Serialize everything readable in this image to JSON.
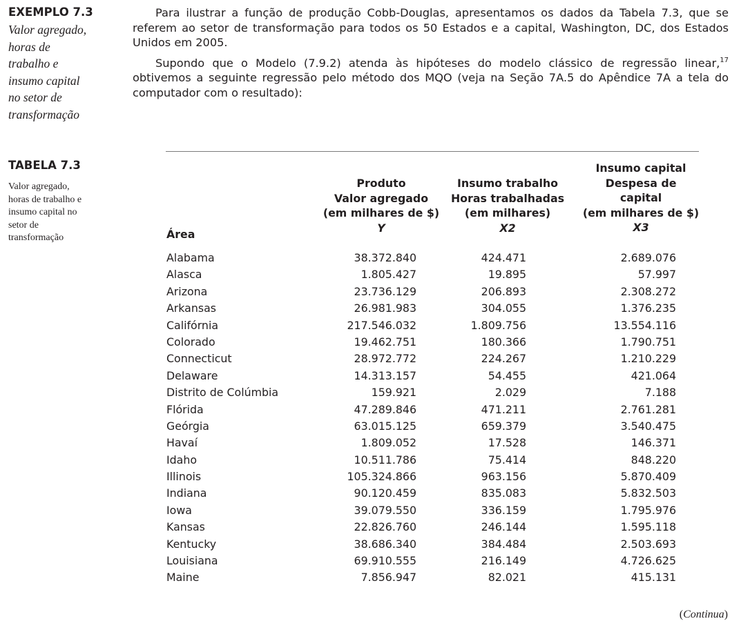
{
  "sidebar": {
    "example_heading": "EXEMPLO 7.3",
    "example_caption_lines": [
      "Valor agregado,",
      "horas de",
      "trabalho e",
      "insumo capital",
      "no setor de",
      "transformação"
    ],
    "table_heading": "TABELA 7.3",
    "table_caption_lines": [
      "Valor agregado,",
      "horas de trabalho e",
      "insumo capital no",
      "setor de",
      "transformação"
    ]
  },
  "body": {
    "para1": "Para ilustrar a função de produção Cobb-Douglas, apresentamos os dados da Tabela 7.3, que se referem ao setor de transformação para todos os 50 Estados e a capital, Washington, DC, dos Estados Unidos em 2005.",
    "para2_a": "Supondo que o Modelo (7.9.2) atenda às hipóteses do modelo clássico de regressão linear,",
    "para2_sup": "17",
    "para2_b": " obtivemos a seguinte regressão pelo método dos MQO (veja na Seção 7A.5 do Apêndice 7A a tela do computador com o resultado):"
  },
  "table": {
    "headers": {
      "area": "Área",
      "y": [
        "Produto",
        "Valor agregado",
        "(em milhares de $)",
        "Y"
      ],
      "x2": [
        "Insumo trabalho",
        "Horas trabalhadas",
        "(em milhares)",
        "X2"
      ],
      "x3": [
        "Insumo capital",
        "Despesa de",
        "capital",
        "(em milhares de $)",
        "X3"
      ]
    },
    "rows": [
      [
        "Alabama",
        "38.372.840",
        "424.471",
        "2.689.076"
      ],
      [
        "Alasca",
        "1.805.427",
        "19.895",
        "57.997"
      ],
      [
        "Arizona",
        "23.736.129",
        "206.893",
        "2.308.272"
      ],
      [
        "Arkansas",
        "26.981.983",
        "304.055",
        "1.376.235"
      ],
      [
        "Califórnia",
        "217.546.032",
        "1.809.756",
        "13.554.116"
      ],
      [
        "Colorado",
        "19.462.751",
        "180.366",
        "1.790.751"
      ],
      [
        "Connecticut",
        "28.972.772",
        "224.267",
        "1.210.229"
      ],
      [
        "Delaware",
        "14.313.157",
        "54.455",
        "421.064"
      ],
      [
        "Distrito de Colúmbia",
        "159.921",
        "2.029",
        "7.188"
      ],
      [
        "Flórida",
        "47.289.846",
        "471.211",
        "2.761.281"
      ],
      [
        "Geórgia",
        "63.015.125",
        "659.379",
        "3.540.475"
      ],
      [
        "Havaí",
        "1.809.052",
        "17.528",
        "146.371"
      ],
      [
        "Idaho",
        "10.511.786",
        "75.414",
        "848.220"
      ],
      [
        "Illinois",
        "105.324.866",
        "963.156",
        "5.870.409"
      ],
      [
        "Indiana",
        "90.120.459",
        "835.083",
        "5.832.503"
      ],
      [
        "Iowa",
        "39.079.550",
        "336.159",
        "1.795.976"
      ],
      [
        "Kansas",
        "22.826.760",
        "246.144",
        "1.595.118"
      ],
      [
        "Kentucky",
        "38.686.340",
        "384.484",
        "2.503.693"
      ],
      [
        "Louisiana",
        "69.910.555",
        "216.149",
        "4.726.625"
      ],
      [
        "Maine",
        "7.856.947",
        "82.021",
        "415.131"
      ]
    ]
  },
  "footer": {
    "continued": "Continua"
  }
}
